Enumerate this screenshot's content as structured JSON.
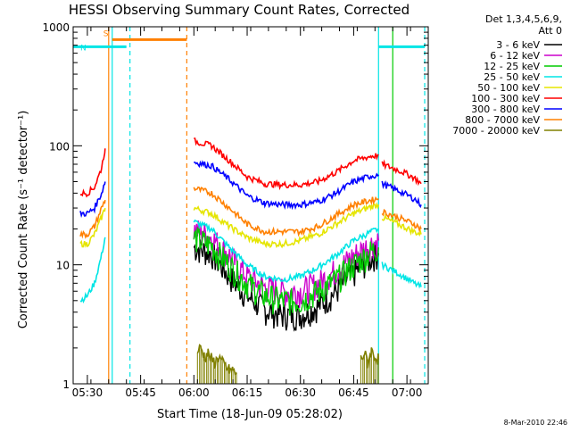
{
  "chart_data": {
    "type": "line",
    "title": "HESSI Observing Summary Count Rates, Corrected",
    "xlabel": "Start Time (18-Jun-09 05:28:02)",
    "ylabel": "Corrected Count Rate (s⁻¹ detector⁻¹)",
    "y_scale": "log",
    "ylim": [
      1,
      1000
    ],
    "xlim": [
      "05:26",
      "07:06"
    ],
    "x_ticks": [
      "05:30",
      "05:45",
      "06:00",
      "06:15",
      "06:30",
      "06:45",
      "07:00"
    ],
    "y_ticks": [
      "1",
      "10",
      "100",
      "1000"
    ],
    "legend_header": [
      "Det 1,3,4,5,6,9,",
      "Att 0"
    ],
    "legend_position": "right",
    "footer_date": "8-Mar-2010 22:46",
    "grid": false,
    "series": [
      {
        "name": "3 - 6 keV",
        "color": "#000000",
        "points": [
          [
            "06:00",
            14
          ],
          [
            "06:05",
            12.5
          ],
          [
            "06:10",
            8
          ],
          [
            "06:15",
            5.5
          ],
          [
            "06:20",
            4.2
          ],
          [
            "06:25",
            3.8
          ],
          [
            "06:30",
            3.8
          ],
          [
            "06:35",
            4.5
          ],
          [
            "06:40",
            6
          ],
          [
            "06:45",
            8.5
          ],
          [
            "06:50",
            11.5
          ],
          [
            "06:52",
            12.5
          ]
        ]
      },
      {
        "name": "6 - 12 keV",
        "color": "#cc00cc",
        "points": [
          [
            "06:00",
            20
          ],
          [
            "06:05",
            17
          ],
          [
            "06:10",
            12
          ],
          [
            "06:15",
            8
          ],
          [
            "06:20",
            6.5
          ],
          [
            "06:25",
            6
          ],
          [
            "06:30",
            6
          ],
          [
            "06:35",
            7
          ],
          [
            "06:40",
            9
          ],
          [
            "06:45",
            12
          ],
          [
            "06:50",
            15
          ],
          [
            "06:52",
            16
          ]
        ]
      },
      {
        "name": "12 - 25 keV",
        "color": "#00cc00",
        "points": [
          [
            "06:00",
            17
          ],
          [
            "06:05",
            14.5
          ],
          [
            "06:10",
            10
          ],
          [
            "06:15",
            7
          ],
          [
            "06:20",
            5.5
          ],
          [
            "06:25",
            5
          ],
          [
            "06:30",
            5
          ],
          [
            "06:35",
            6
          ],
          [
            "06:40",
            7.5
          ],
          [
            "06:45",
            10
          ],
          [
            "06:50",
            13
          ],
          [
            "06:52",
            14
          ]
        ]
      },
      {
        "name": "25 - 50 keV",
        "color": "#00e5e5",
        "segments": [
          [
            [
              "05:28",
              5
            ],
            [
              "05:30",
              5.5
            ],
            [
              "05:32",
              7
            ],
            [
              "05:34",
              12
            ],
            [
              "05:35",
              17
            ]
          ],
          [
            [
              "06:00",
              23
            ],
            [
              "06:05",
              20
            ],
            [
              "06:10",
              14
            ],
            [
              "06:15",
              10
            ],
            [
              "06:20",
              8
            ],
            [
              "06:25",
              7.5
            ],
            [
              "06:30",
              8
            ],
            [
              "06:35",
              9.5
            ],
            [
              "06:40",
              12
            ],
            [
              "06:45",
              16
            ],
            [
              "06:50",
              19
            ],
            [
              "06:52",
              20
            ]
          ],
          [
            [
              "06:53",
              10
            ],
            [
              "06:56",
              9
            ],
            [
              "06:59",
              8
            ],
            [
              "07:02",
              7
            ],
            [
              "07:04",
              6.5
            ]
          ]
        ]
      },
      {
        "name": "50 - 100 keV",
        "color": "#e5e500",
        "segments": [
          [
            [
              "05:28",
              15
            ],
            [
              "05:30",
              15
            ],
            [
              "05:32",
              18
            ],
            [
              "05:34",
              25
            ],
            [
              "05:35",
              30
            ]
          ],
          [
            [
              "06:00",
              30
            ],
            [
              "06:05",
              27
            ],
            [
              "06:10",
              21
            ],
            [
              "06:15",
              17
            ],
            [
              "06:20",
              15
            ],
            [
              "06:25",
              15
            ],
            [
              "06:30",
              16
            ],
            [
              "06:35",
              18
            ],
            [
              "06:40",
              22
            ],
            [
              "06:45",
              27
            ],
            [
              "06:50",
              31
            ],
            [
              "06:52",
              32
            ]
          ],
          [
            [
              "06:53",
              25
            ],
            [
              "06:56",
              23
            ],
            [
              "06:59",
              21
            ],
            [
              "07:02",
              19
            ],
            [
              "07:04",
              18
            ]
          ]
        ]
      },
      {
        "name": "100 - 300 keV",
        "color": "#ff0000",
        "segments": [
          [
            [
              "05:28",
              40
            ],
            [
              "05:30",
              40
            ],
            [
              "05:32",
              45
            ],
            [
              "05:34",
              65
            ],
            [
              "05:35",
              95
            ]
          ],
          [
            [
              "06:00",
              110
            ],
            [
              "06:05",
              100
            ],
            [
              "06:10",
              75
            ],
            [
              "06:15",
              55
            ],
            [
              "06:20",
              48
            ],
            [
              "06:25",
              47
            ],
            [
              "06:30",
              47
            ],
            [
              "06:35",
              50
            ],
            [
              "06:40",
              60
            ],
            [
              "06:45",
              75
            ],
            [
              "06:50",
              82
            ],
            [
              "06:52",
              83
            ]
          ],
          [
            [
              "06:53",
              70
            ],
            [
              "06:56",
              65
            ],
            [
              "06:59",
              60
            ],
            [
              "07:02",
              54
            ],
            [
              "07:04",
              48
            ]
          ]
        ]
      },
      {
        "name": "300 - 800 keV",
        "color": "#0000ff",
        "segments": [
          [
            [
              "05:28",
              27
            ],
            [
              "05:30",
              27
            ],
            [
              "05:32",
              30
            ],
            [
              "05:34",
              40
            ],
            [
              "05:35",
              50
            ]
          ],
          [
            [
              "06:00",
              73
            ],
            [
              "06:05",
              68
            ],
            [
              "06:10",
              52
            ],
            [
              "06:15",
              38
            ],
            [
              "06:20",
              33
            ],
            [
              "06:25",
              32
            ],
            [
              "06:30",
              32
            ],
            [
              "06:35",
              34
            ],
            [
              "06:40",
              40
            ],
            [
              "06:45",
              50
            ],
            [
              "06:50",
              56
            ],
            [
              "06:52",
              57
            ]
          ],
          [
            [
              "06:53",
              48
            ],
            [
              "06:56",
              44
            ],
            [
              "06:59",
              40
            ],
            [
              "07:02",
              36
            ],
            [
              "07:04",
              32
            ]
          ]
        ]
      },
      {
        "name": "800 - 7000 keV",
        "color": "#ff8000",
        "segments": [
          [
            [
              "05:28",
              18
            ],
            [
              "05:30",
              18
            ],
            [
              "05:32",
              21
            ],
            [
              "05:34",
              30
            ],
            [
              "05:35",
              35
            ]
          ],
          [
            [
              "06:00",
              44
            ],
            [
              "06:05",
              40
            ],
            [
              "06:10",
              30
            ],
            [
              "06:15",
              22
            ],
            [
              "06:20",
              19
            ],
            [
              "06:25",
              19
            ],
            [
              "06:30",
              19
            ],
            [
              "06:35",
              21
            ],
            [
              "06:40",
              26
            ],
            [
              "06:45",
              32
            ],
            [
              "06:50",
              35
            ],
            [
              "06:52",
              36
            ]
          ],
          [
            [
              "06:53",
              28
            ],
            [
              "06:56",
              26
            ],
            [
              "06:59",
              24
            ],
            [
              "07:02",
              22
            ],
            [
              "07:04",
              20
            ]
          ]
        ]
      },
      {
        "name": "7000 - 20000 keV",
        "color": "#808000",
        "segments": [
          [
            [
              "06:01",
              1.9
            ],
            [
              "06:02",
              2.0
            ],
            [
              "06:03",
              1.7
            ],
            [
              "06:04",
              1.8
            ],
            [
              "06:05",
              1.6
            ],
            [
              "06:06",
              1.5
            ],
            [
              "06:07",
              1.7
            ],
            [
              "06:08",
              1.5
            ],
            [
              "06:09",
              1.4
            ],
            [
              "06:10",
              1.3
            ],
            [
              "06:11",
              1.3
            ],
            [
              "06:12",
              1.2
            ]
          ],
          [
            [
              "06:47",
              1.6
            ],
            [
              "06:48",
              1.8
            ],
            [
              "06:49",
              1.5
            ],
            [
              "06:50",
              1.9
            ],
            [
              "06:51",
              1.7
            ],
            [
              "06:52",
              1.6
            ]
          ]
        ]
      }
    ],
    "flag_bars": [
      {
        "label": "S",
        "color": "#ff8000",
        "start": "05:37",
        "end": "05:58",
        "value": 780
      },
      {
        "label": "N",
        "color": "#00e5e5",
        "start": "05:26",
        "end": "05:41",
        "value": 680
      },
      {
        "label": "",
        "color": "#00e5e5",
        "start": "06:52",
        "end": "07:05",
        "value": 680
      }
    ],
    "vertical_markers": [
      {
        "color": "#ff8000",
        "time": "05:36",
        "style": "solid"
      },
      {
        "color": "#00e5e5",
        "time": "05:37",
        "style": "solid"
      },
      {
        "color": "#00e5e5",
        "time": "05:42",
        "style": "dashed"
      },
      {
        "color": "#ff8000",
        "time": "05:58",
        "style": "dashed"
      },
      {
        "color": "#00e5e5",
        "time": "06:52",
        "style": "solid"
      },
      {
        "color": "#00cc00",
        "time": "06:56",
        "style": "solid"
      },
      {
        "color": "#00e5e5",
        "time": "07:05",
        "style": "dashed"
      }
    ]
  }
}
